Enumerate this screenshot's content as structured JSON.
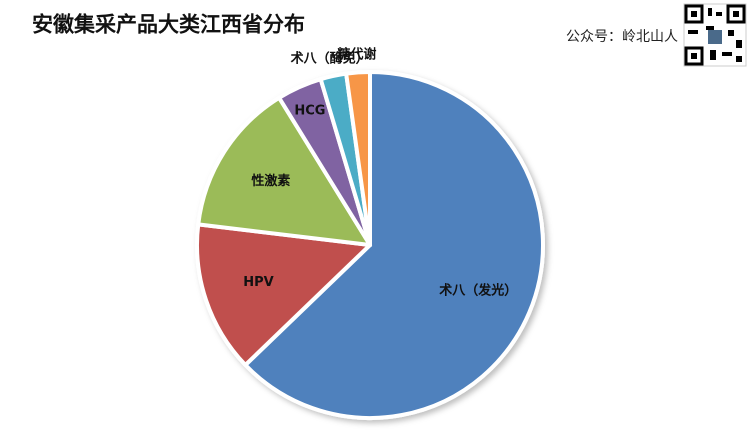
{
  "chart_data": {
    "type": "pie",
    "title": "安徽集采产品大类江西省分布",
    "subtitle": "公众号：岭北山人",
    "categories": [
      "术八（发光）",
      "HPV",
      "性激素",
      "HCG",
      "术八（酶免）",
      "糖代谢"
    ],
    "values": [
      62.8,
      14.1,
      14.3,
      4.2,
      2.4,
      2.2
    ],
    "colors": [
      "#4f81bd",
      "#c0504d",
      "#9bbb59",
      "#8064a2",
      "#4bacc6",
      "#f79646"
    ]
  }
}
